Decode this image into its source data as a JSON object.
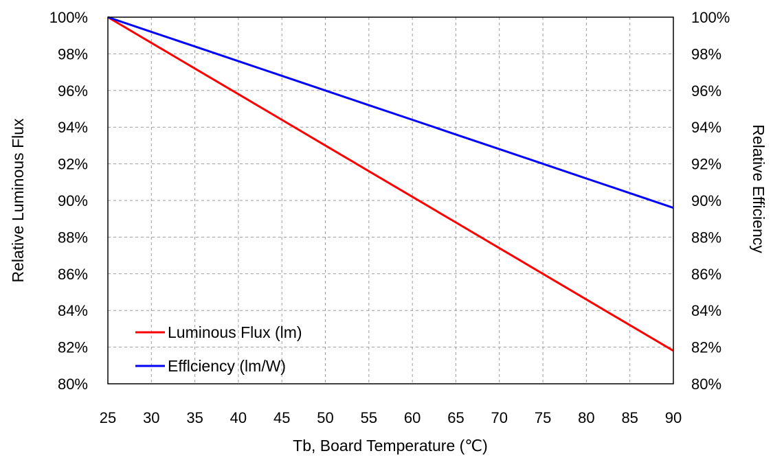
{
  "chart_data": {
    "type": "line",
    "title": "",
    "xlabel": "Tb, Board Temperature (℃)",
    "ylabel": "Relative Luminous Flux",
    "ylabel_right": "Relative Efficiency",
    "x_ticks": [
      "25",
      "30",
      "35",
      "40",
      "45",
      "50",
      "55",
      "60",
      "65",
      "70",
      "75",
      "80",
      "85",
      "90"
    ],
    "y_ticks": [
      "80%",
      "82%",
      "84%",
      "86%",
      "88%",
      "90%",
      "92%",
      "94%",
      "96%",
      "98%",
      "100%"
    ],
    "y2_ticks": [
      "80%",
      "82%",
      "84%",
      "86%",
      "88%",
      "90%",
      "92%",
      "94%",
      "96%",
      "98%",
      "100%"
    ],
    "xlim": [
      25,
      90
    ],
    "ylim": [
      80,
      100
    ],
    "y2lim": [
      80,
      100
    ],
    "grid": true,
    "legend_position": "bottom-left",
    "series": [
      {
        "name": "Luminous Flux (lm)",
        "color": "#ff0000",
        "axis": "left",
        "x": [
          25,
          30,
          35,
          40,
          45,
          50,
          55,
          60,
          65,
          70,
          75,
          80,
          85,
          90
        ],
        "y": [
          100,
          98.6,
          97.2,
          95.8,
          94.4,
          93.0,
          91.6,
          90.2,
          88.8,
          87.4,
          86.0,
          84.6,
          83.2,
          81.8
        ]
      },
      {
        "name": "Efflciency (lm/W)",
        "color": "#0000ff",
        "axis": "right",
        "x": [
          25,
          30,
          35,
          40,
          45,
          50,
          55,
          60,
          65,
          70,
          75,
          80,
          85,
          90
        ],
        "y": [
          100,
          99.2,
          98.4,
          97.6,
          96.8,
          96.0,
          95.2,
          94.4,
          93.6,
          92.8,
          92.0,
          91.2,
          90.4,
          89.6
        ]
      }
    ]
  }
}
